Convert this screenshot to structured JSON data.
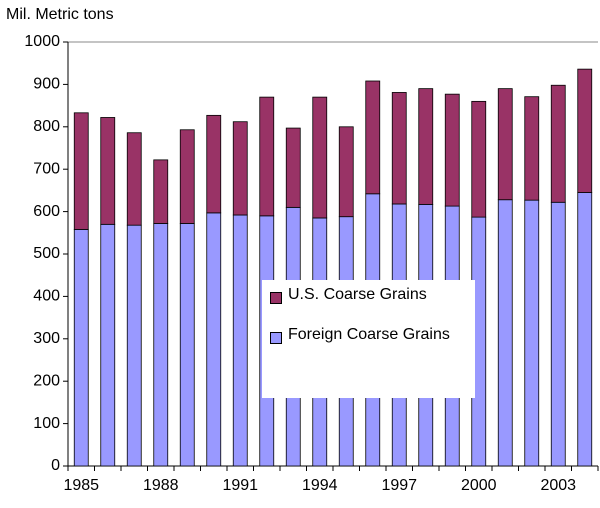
{
  "chart_data": {
    "type": "stacked_bar",
    "y_label": "Mil. Metric tons",
    "categories": [
      "1985",
      null,
      null,
      "1988",
      null,
      null,
      "1991",
      null,
      null,
      "1994",
      null,
      null,
      "1997",
      null,
      null,
      "2000",
      null,
      null,
      "2003",
      null
    ],
    "series": [
      {
        "name": "Foreign Coarse Grains",
        "color": "#9999ff",
        "values": [
          558,
          570,
          568,
          572,
          572,
          597,
          592,
          590,
          610,
          585,
          588,
          642,
          618,
          617,
          613,
          587,
          628,
          627,
          622,
          645
        ]
      },
      {
        "name": "U.S. Coarse Grains",
        "color": "#993366",
        "values": [
          275,
          252,
          218,
          150,
          221,
          230,
          220,
          280,
          187,
          285,
          212,
          266,
          263,
          273,
          264,
          273,
          262,
          244,
          276,
          291
        ]
      }
    ],
    "ylim": [
      0,
      1000
    ],
    "yticks": [
      0,
      100,
      200,
      300,
      400,
      500,
      600,
      700,
      800,
      900,
      1000
    ],
    "grid": false,
    "legend": "center"
  }
}
